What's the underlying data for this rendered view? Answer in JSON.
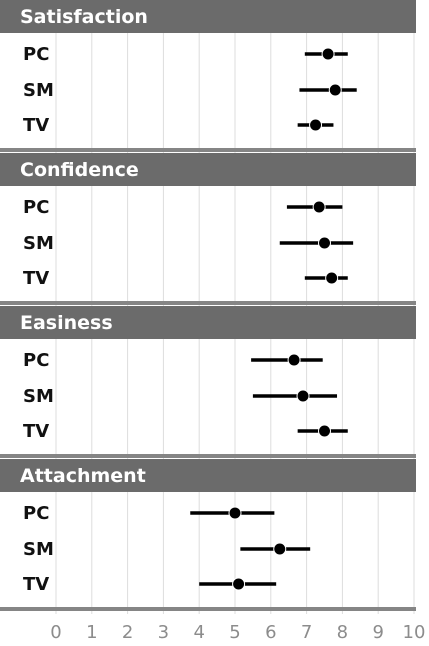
{
  "chart_data": {
    "type": "scatter",
    "subtype": "dot-and-whisker (point estimate with interval)",
    "x_axis": {
      "range": [
        0,
        10
      ],
      "ticks": [
        "0",
        "1",
        "2",
        "3",
        "4",
        "5",
        "6",
        "7",
        "8",
        "9",
        "10"
      ],
      "grid": true
    },
    "panels": [
      {
        "title": "Satisfaction",
        "rows": [
          {
            "label": "PC",
            "estimate": 7.6,
            "low": 6.95,
            "high": 8.15
          },
          {
            "label": "SM",
            "estimate": 7.8,
            "low": 6.8,
            "high": 8.4
          },
          {
            "label": "TV",
            "estimate": 7.25,
            "low": 6.75,
            "high": 7.75
          }
        ]
      },
      {
        "title": "Confidence",
        "rows": [
          {
            "label": "PC",
            "estimate": 7.35,
            "low": 6.45,
            "high": 8.0
          },
          {
            "label": "SM",
            "estimate": 7.5,
            "low": 6.25,
            "high": 8.3
          },
          {
            "label": "TV",
            "estimate": 7.7,
            "low": 6.95,
            "high": 8.15
          }
        ]
      },
      {
        "title": "Easiness",
        "rows": [
          {
            "label": "PC",
            "estimate": 6.65,
            "low": 5.45,
            "high": 7.45
          },
          {
            "label": "SM",
            "estimate": 6.9,
            "low": 5.5,
            "high": 7.85
          },
          {
            "label": "TV",
            "estimate": 7.5,
            "low": 6.75,
            "high": 8.15
          }
        ]
      },
      {
        "title": "Attachment",
        "rows": [
          {
            "label": "PC",
            "estimate": 5.0,
            "low": 3.75,
            "high": 6.1
          },
          {
            "label": "SM",
            "estimate": 6.25,
            "low": 5.15,
            "high": 7.1
          },
          {
            "label": "TV",
            "estimate": 5.1,
            "low": 4.0,
            "high": 6.15
          }
        ]
      }
    ],
    "colors": {
      "header_background": "#6b6b6b",
      "header_text": "#ffffff",
      "separator": "#858585",
      "gridline": "#dddddd",
      "marker": "#000000",
      "tick_text": "#8c8c8c",
      "row_label_text": "#111111"
    }
  }
}
